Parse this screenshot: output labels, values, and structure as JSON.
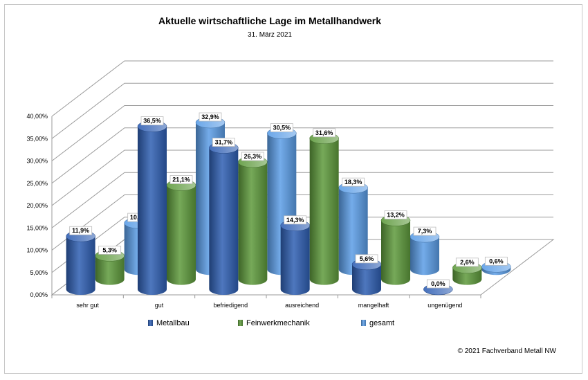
{
  "chart_data": {
    "type": "bar",
    "title": "Aktuelle wirtschaftliche Lage im Metallhandwerk",
    "subtitle": "31. März 2021",
    "categories": [
      "sehr gut",
      "gut",
      "befriedigend",
      "ausreichend",
      "mangelhaft",
      "ungenügend"
    ],
    "series": [
      {
        "name": "Metallbau",
        "values": [
          11.9,
          36.5,
          31.7,
          14.3,
          5.6,
          0.0
        ],
        "labels": [
          "11,9%",
          "36,5%",
          "31,7%",
          "14,3%",
          "5,6%",
          "0,0%"
        ],
        "color": "#2f5fb3"
      },
      {
        "name": "Feinwerkmechanik",
        "values": [
          5.3,
          21.1,
          26.3,
          31.6,
          13.2,
          2.6
        ],
        "labels": [
          "5,3%",
          "21,1%",
          "26,3%",
          "31,6%",
          "13,2%",
          "2,6%"
        ],
        "color": "#5e9a3c"
      },
      {
        "name": "gesamt",
        "values": [
          10.4,
          32.9,
          30.5,
          18.3,
          7.3,
          0.6
        ],
        "labels": [
          "10,4%",
          "32,9%",
          "30,5%",
          "18,3%",
          "7,3%",
          "0,6%"
        ],
        "color": "#5b9de6"
      }
    ],
    "ytick_labels": [
      "0,00%",
      "5,00%",
      "10,00%",
      "15,00%",
      "20,00%",
      "25,00%",
      "30,00%",
      "35,00%",
      "40,00%"
    ],
    "ylim": [
      0,
      40
    ],
    "legend_position": "bottom",
    "grid": true
  },
  "copyright": "© 2021 Fachverband Metall NW"
}
